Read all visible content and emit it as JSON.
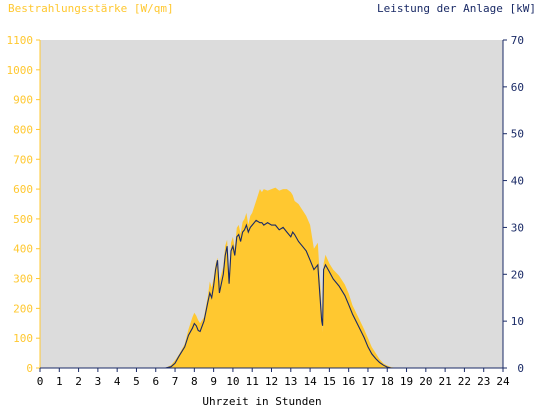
{
  "chart_data": {
    "type": "area",
    "title_left": "Bestrahlungsstärke [W/qm]",
    "title_right": "Leistung der Anlage [kW]",
    "xlabel": "Uhrzeit in Stunden",
    "xlim": [
      0,
      24
    ],
    "x_ticks": [
      "0",
      "1",
      "2",
      "3",
      "4",
      "5",
      "6",
      "7",
      "8",
      "9",
      "10",
      "11",
      "12",
      "13",
      "14",
      "15",
      "16",
      "17",
      "18",
      "19",
      "20",
      "21",
      "22",
      "23",
      "24"
    ],
    "ylim_left": [
      0,
      1100
    ],
    "y_ticks_left": [
      "0",
      "100",
      "200",
      "300",
      "400",
      "500",
      "600",
      "700",
      "800",
      "900",
      "1000",
      "1100"
    ],
    "ylim_right": [
      0,
      70
    ],
    "y_ticks_right": [
      "0",
      "10",
      "20",
      "30",
      "40",
      "50",
      "60",
      "70"
    ],
    "grid": false,
    "colors": {
      "plot_background": "#dcdcdc",
      "irradiance_fill": "#ffc830",
      "power_line": "#1a2a66",
      "left_axis": "#ffc830",
      "right_axis": "#1a2a66"
    },
    "series": [
      {
        "axis": "left",
        "style": "area",
        "x": [
          0,
          6.5,
          6.8,
          7.0,
          7.2,
          7.5,
          7.7,
          7.9,
          8.0,
          8.1,
          8.2,
          8.3,
          8.5,
          8.7,
          8.8,
          8.9,
          9.0,
          9.1,
          9.2,
          9.3,
          9.5,
          9.6,
          9.7,
          9.8,
          9.9,
          10.0,
          10.1,
          10.2,
          10.3,
          10.4,
          10.5,
          10.6,
          10.7,
          10.8,
          10.9,
          11.0,
          11.2,
          11.4,
          11.5,
          11.6,
          11.8,
          12.0,
          12.2,
          12.4,
          12.6,
          12.8,
          13.0,
          13.1,
          13.2,
          13.4,
          13.6,
          13.8,
          14.0,
          14.2,
          14.4,
          14.6,
          14.65,
          14.7,
          14.8,
          15.0,
          15.2,
          15.5,
          15.8,
          16.0,
          16.2,
          16.5,
          16.8,
          17.0,
          17.2,
          17.4,
          17.6,
          17.8,
          18.0,
          18.2,
          18.5,
          24
        ],
        "y": [
          0,
          0,
          10,
          25,
          45,
          80,
          130,
          170,
          185,
          175,
          160,
          150,
          170,
          240,
          290,
          270,
          300,
          350,
          370,
          290,
          340,
          410,
          430,
          300,
          420,
          440,
          400,
          470,
          480,
          450,
          490,
          500,
          520,
          480,
          510,
          520,
          560,
          600,
          590,
          600,
          595,
          600,
          605,
          595,
          600,
          600,
          590,
          580,
          560,
          550,
          530,
          510,
          480,
          400,
          420,
          200,
          120,
          350,
          380,
          350,
          330,
          310,
          280,
          250,
          210,
          170,
          130,
          100,
          70,
          50,
          30,
          15,
          8,
          3,
          0,
          0
        ]
      },
      {
        "axis": "right",
        "style": "line",
        "x": [
          0,
          6.5,
          6.8,
          7.0,
          7.2,
          7.5,
          7.7,
          7.9,
          8.0,
          8.1,
          8.2,
          8.3,
          8.5,
          8.7,
          8.8,
          8.9,
          9.0,
          9.1,
          9.2,
          9.3,
          9.5,
          9.6,
          9.7,
          9.8,
          9.9,
          10.0,
          10.1,
          10.2,
          10.3,
          10.4,
          10.5,
          10.6,
          10.7,
          10.8,
          10.9,
          11.0,
          11.2,
          11.4,
          11.5,
          11.6,
          11.8,
          12.0,
          12.2,
          12.4,
          12.6,
          12.8,
          13.0,
          13.1,
          13.2,
          13.4,
          13.6,
          13.8,
          14.0,
          14.2,
          14.4,
          14.6,
          14.65,
          14.7,
          14.8,
          15.0,
          15.2,
          15.5,
          15.8,
          16.0,
          16.2,
          16.5,
          16.8,
          17.0,
          17.2,
          17.4,
          17.6,
          17.8,
          18.0,
          18.2,
          18.5,
          24
        ],
        "y": [
          0,
          0,
          0.3,
          1,
          2.5,
          4.5,
          7,
          8.5,
          9.5,
          9,
          8,
          7.8,
          10,
          14,
          16,
          15,
          17.5,
          21,
          23,
          16,
          20,
          24,
          26,
          18,
          25,
          26,
          24,
          28,
          28.5,
          27,
          29,
          29.5,
          30.5,
          29,
          30,
          30.5,
          31.5,
          31,
          31,
          30.5,
          31,
          30.5,
          30.5,
          29.5,
          30,
          29,
          28,
          29,
          28.5,
          27,
          26,
          25,
          23,
          21,
          22,
          10,
          9,
          21,
          22,
          20.5,
          19,
          17.5,
          15.5,
          13.5,
          11.5,
          9,
          6.5,
          4.5,
          3,
          2,
          1.2,
          0.6,
          0.2,
          0,
          0,
          0
        ]
      }
    ]
  }
}
